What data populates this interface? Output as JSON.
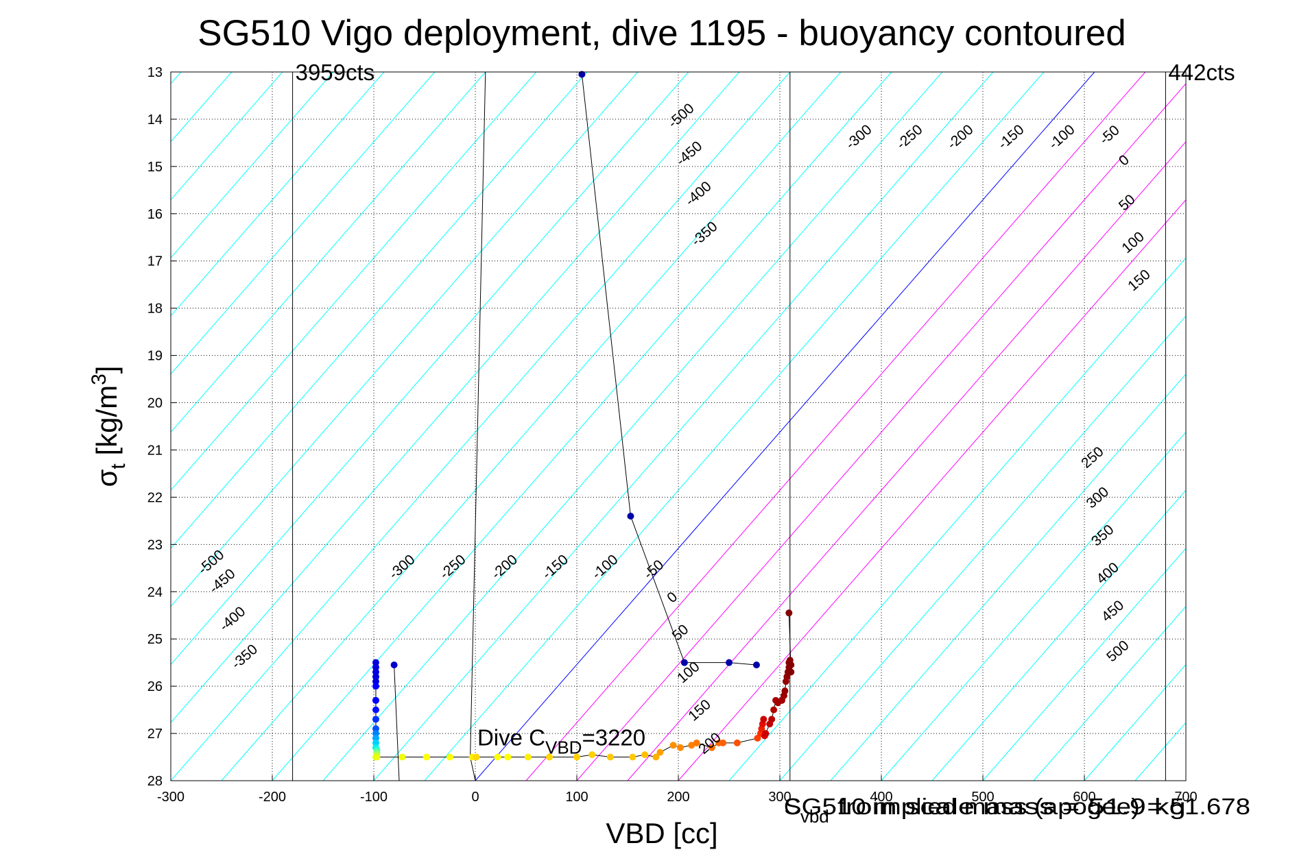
{
  "chart_data": {
    "type": "scatter",
    "title": "SG510 Vigo deployment, dive 1195 - buoyancy contoured",
    "xlabel": "VBD [cc]",
    "ylabel": {
      "base": "σ",
      "sub": "t",
      "unit_pre": " [kg/m",
      "sup": "3",
      "unit_post": "]"
    },
    "xlim": [
      -300,
      700
    ],
    "ylim": [
      13,
      28
    ],
    "y_reversed": true,
    "grid": true,
    "x_ticks": [
      -300,
      -200,
      -100,
      0,
      100,
      200,
      300,
      400,
      500,
      600,
      700
    ],
    "x_tick_labels": [
      "-300",
      "-200",
      "-100",
      "0",
      "100",
      "200",
      "300",
      "400",
      "500",
      "600",
      "700"
    ],
    "y_ticks": [
      13,
      14,
      15,
      16,
      17,
      18,
      19,
      20,
      21,
      22,
      23,
      24,
      25,
      26,
      27,
      28
    ],
    "y_tick_labels": [
      "13",
      "14",
      "15",
      "16",
      "17",
      "18",
      "19",
      "20",
      "21",
      "22",
      "23",
      "24",
      "25",
      "26",
      "27",
      "28"
    ],
    "vertical_lines": [
      {
        "x": -180,
        "label": "3959cts",
        "color": "#000000"
      },
      {
        "x": 310,
        "label": "",
        "color": "#000000"
      },
      {
        "x": 680,
        "label": "442cts",
        "color": "#000000"
      }
    ],
    "contours": {
      "slope_cc_per_sigma": 40.67,
      "zero_line": {
        "x_at_28": 0,
        "color": "#0000ff"
      },
      "pos_color": "#ff00ff",
      "neg_color": "#00ffff",
      "levels": [
        -500,
        -450,
        -400,
        -350,
        -300,
        -250,
        -200,
        -150,
        -100,
        -50,
        0,
        50,
        100,
        150,
        200,
        250,
        300,
        350,
        400,
        450,
        500
      ],
      "label_values": [
        "-500",
        "-450",
        "-400",
        "-350",
        "-300",
        "-250",
        "-200",
        "-150",
        "-100",
        "-50",
        "0",
        "50",
        "100",
        "150",
        "200",
        "250",
        "300",
        "350",
        "400",
        "450",
        "500"
      ],
      "label_sets": [
        {
          "levels": [
            -500,
            -450,
            -400,
            -350
          ],
          "x_at_28": [
            -900,
            -850,
            -800,
            -750
          ]
        },
        {
          "levels": [
            -300,
            -250,
            -200,
            -150,
            -100,
            -50,
            0,
            50,
            100,
            150,
            200
          ],
          "x_at_28": [
            -700,
            -650,
            -600,
            -550,
            -500,
            -450,
            -400,
            -350,
            -300,
            -250,
            -200
          ]
        },
        {
          "levels": [
            -300,
            -250,
            -200,
            -150,
            -100,
            -50,
            0,
            50,
            100,
            150
          ],
          "x_at_28": [
            -100,
            -50,
            0,
            50,
            100,
            150,
            200,
            250,
            300,
            350
          ]
        },
        {
          "levels": [
            -500,
            -450,
            -400,
            -350
          ],
          "x_at_28": [
            -150,
            -100,
            -50,
            0
          ]
        },
        {
          "levels": [
            250,
            300,
            350,
            400,
            450,
            500
          ],
          "x_at_28": [
            0,
            50,
            100,
            150,
            200,
            250
          ]
        }
      ]
    },
    "gauge_line": [
      [
        0,
        28
      ],
      [
        -5,
        27.5
      ],
      [
        10,
        13
      ]
    ],
    "track_line": [
      [
        105,
        13.05
      ],
      [
        153,
        22.4
      ],
      [
        206,
        25.5
      ],
      [
        250,
        25.5
      ],
      [
        277,
        25.55
      ]
    ],
    "series": [
      {
        "x": [
          105,
          153,
          206,
          250,
          277,
          -98,
          -98,
          -98,
          -98,
          -98,
          -98,
          -98,
          -98,
          -98,
          -98,
          -98,
          -98,
          -98,
          -98,
          -97,
          -97,
          -97,
          -97,
          -80,
          -98,
          -72,
          -48,
          -25,
          -3,
          1,
          22,
          32,
          52,
          73,
          100,
          115,
          133,
          155,
          167,
          178,
          182,
          195,
          202,
          213,
          218,
          233,
          240,
          244,
          258,
          278,
          281,
          282,
          283,
          284,
          285,
          286,
          290,
          292,
          294,
          296,
          298,
          302,
          304,
          305,
          306,
          307,
          308,
          309,
          309,
          310,
          311,
          311,
          309
        ],
        "y": [
          13.05,
          22.4,
          25.5,
          25.5,
          25.55,
          25.5,
          25.6,
          25.7,
          25.8,
          25.9,
          26.0,
          26.3,
          26.5,
          26.7,
          26.9,
          27.0,
          27.1,
          27.2,
          27.3,
          27.35,
          27.4,
          27.45,
          27.5,
          25.55,
          27.5,
          27.5,
          27.5,
          27.5,
          27.5,
          27.5,
          27.5,
          27.5,
          27.5,
          27.5,
          27.5,
          27.45,
          27.5,
          27.5,
          27.45,
          27.5,
          27.4,
          27.25,
          27.3,
          27.25,
          27.2,
          27.3,
          27.2,
          27.2,
          27.2,
          27.1,
          27.0,
          26.9,
          26.8,
          26.7,
          27.05,
          27.0,
          26.8,
          26.7,
          26.5,
          26.3,
          26.35,
          26.3,
          26.2,
          26.1,
          25.9,
          25.8,
          25.7,
          25.6,
          25.5,
          25.45,
          25.55,
          25.7,
          24.45
        ],
        "colors": [
          "#0000aa",
          "#0000aa",
          "#0000aa",
          "#0000aa",
          "#0000aa",
          "#0000dd",
          "#0000dd",
          "#0000dd",
          "#0000dd",
          "#0000dd",
          "#0000ff",
          "#0000ff",
          "#0010ff",
          "#0030ff",
          "#0050ff",
          "#0080ff",
          "#00a8ff",
          "#00d0ff",
          "#00f0f0",
          "#30ffc8",
          "#70ff90",
          "#b0ff50",
          "#e8ff10",
          "#0000cc",
          "#e8ff10",
          "#f0ff00",
          "#ffff00",
          "#ffff00",
          "#ffee00",
          "#ffd800",
          "#ffff00",
          "#ffff00",
          "#ffee00",
          "#ffd800",
          "#ffd000",
          "#ffd000",
          "#ffc800",
          "#ffc800",
          "#ffc000",
          "#ffb000",
          "#ffa000",
          "#ff9000",
          "#ff8800",
          "#ff8000",
          "#ff7800",
          "#ff7000",
          "#ff6800",
          "#ff6000",
          "#ff5000",
          "#ff4000",
          "#ff3000",
          "#ee2000",
          "#e01000",
          "#d00000",
          "#d80000",
          "#cc0000",
          "#c00000",
          "#b80000",
          "#b00000",
          "#a80000",
          "#a00000",
          "#a00000",
          "#9a0000",
          "#960000",
          "#920000",
          "#900000",
          "#8c0000",
          "#8a0000",
          "#880000",
          "#860000",
          "#840000",
          "#820000",
          "#800000"
        ]
      }
    ],
    "annotations": [
      {
        "text_main": "Dive C",
        "text_sub": "VBD",
        "text_tail": "=3220",
        "x": 2,
        "y": 27.25
      },
      {
        "text_main": "SG510 implied mass (apogee) = 51.678",
        "x": 300,
        "y": 28.55
      },
      {
        "text_main": "C",
        "text_sub": "vbd",
        "text_tail": " from scale mass = 51.9 kg",
        "x": 300,
        "y": 28.55
      }
    ]
  }
}
